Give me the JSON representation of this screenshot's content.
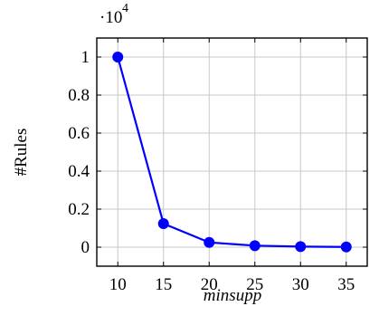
{
  "chart_data": {
    "type": "line",
    "x": [
      10,
      15,
      20,
      25,
      30,
      35
    ],
    "series": [
      {
        "values": [
          10000,
          1240,
          250,
          80,
          30,
          10
        ],
        "color": "#0000ff"
      }
    ],
    "xlabel": "minsupp",
    "ylabel": "#Rules",
    "scale_label_base": "·10",
    "scale_label_exp": "4",
    "xticks": [
      "10",
      "15",
      "20",
      "25",
      "30",
      "35"
    ],
    "yticks": [
      "0",
      "0.2",
      "0.4",
      "0.6",
      "0.8",
      "1"
    ],
    "ytick_values": [
      0,
      2000,
      4000,
      6000,
      8000,
      10000
    ],
    "xlim": [
      7.7,
      37.3
    ],
    "ylim": [
      -1000,
      11000
    ],
    "grid": true,
    "markers": "filled-circle"
  }
}
